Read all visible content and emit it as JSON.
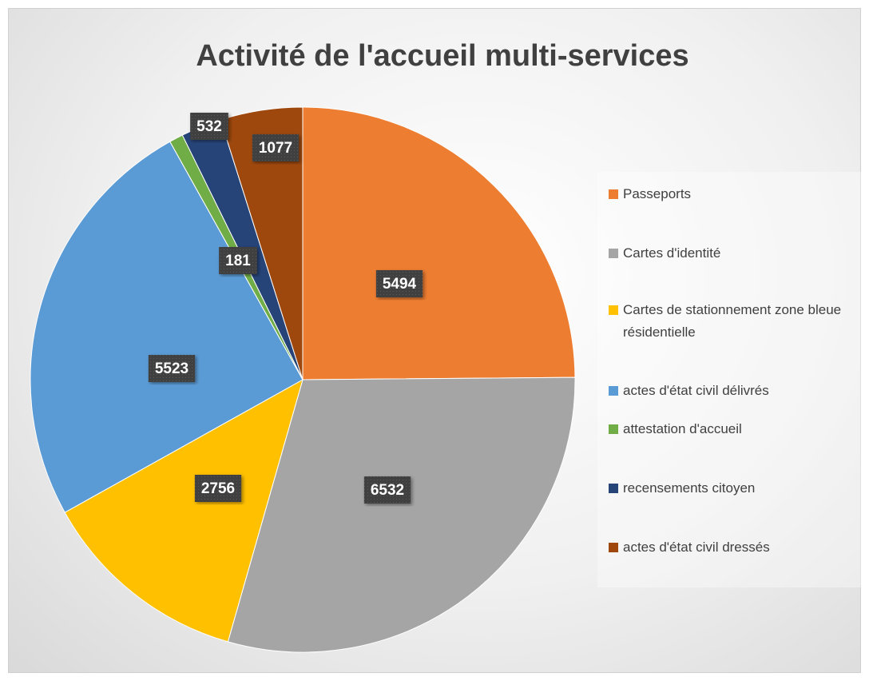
{
  "chart_data": {
    "type": "pie",
    "title": "Activité de l'accueil multi-services",
    "categories": [
      "Passeports",
      "Cartes d'identité",
      "Cartes de stationnement zone bleue résidentielle",
      "actes d'état civil délivrés",
      "attestation d'accueil",
      "recensements citoyen",
      "actes d'état civil dressés"
    ],
    "values": [
      5494,
      6532,
      2756,
      5523,
      181,
      532,
      1077
    ],
    "colors": [
      "#ED7D31",
      "#A5A5A5",
      "#FFC000",
      "#5B9BD5",
      "#70AD47",
      "#264478",
      "#9E480E"
    ],
    "legend": "right"
  }
}
